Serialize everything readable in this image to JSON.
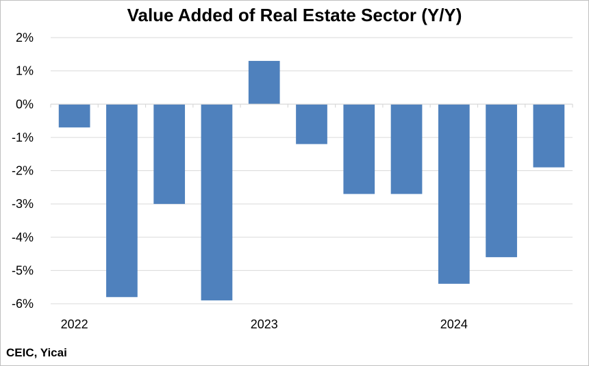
{
  "chart_data": {
    "type": "bar",
    "title": "Value Added of Real Estate Sector (Y/Y)",
    "source": "CEIC, Yicai",
    "categories": [
      "2022 Q1",
      "2022 Q2",
      "2022 Q3",
      "2022 Q4",
      "2023 Q1",
      "2023 Q2",
      "2023 Q3",
      "2023 Q4",
      "2024 Q1",
      "2024 Q2",
      "2024 Q3"
    ],
    "x_tick_labels": [
      {
        "label": "2022",
        "index": 0
      },
      {
        "label": "2023",
        "index": 4
      },
      {
        "label": "2024",
        "index": 8
      }
    ],
    "values": [
      -0.7,
      -5.8,
      -3.0,
      -5.9,
      1.3,
      -1.2,
      -2.7,
      -2.7,
      -5.4,
      -4.6,
      -1.9
    ],
    "ylim": [
      -6,
      2
    ],
    "y_ticks": [
      2,
      1,
      0,
      -1,
      -2,
      -3,
      -4,
      -5,
      -6
    ],
    "y_tick_suffix": "%",
    "grid": true,
    "legend": "none",
    "bar_color": "#4f81bd",
    "grid_color": "#d9d9d9",
    "axis_color": "#d9d9d9"
  }
}
